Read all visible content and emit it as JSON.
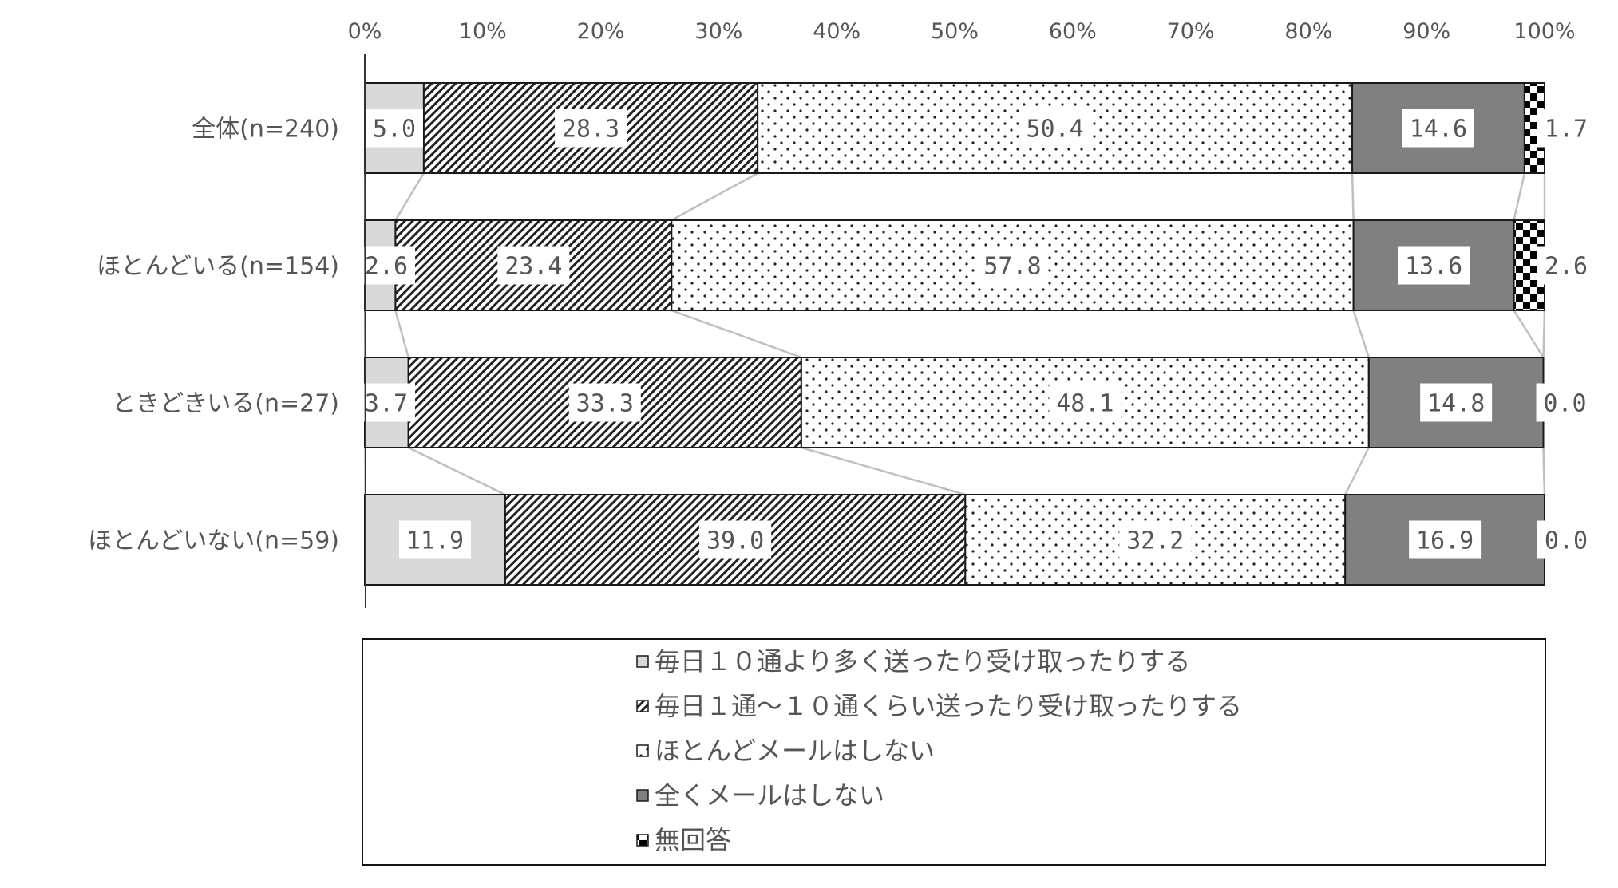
{
  "chart_data": {
    "type": "bar",
    "orientation": "horizontal",
    "stacked": "100%",
    "x_ticks": [
      "0%",
      "10%",
      "20%",
      "30%",
      "40%",
      "50%",
      "60%",
      "70%",
      "80%",
      "90%",
      "100%"
    ],
    "xlim": [
      0,
      100
    ],
    "categories": [
      "全体(n=240)",
      "ほとんどいる(n=154)",
      "ときどきいる(n=27)",
      "ほとんどいない(n=59)"
    ],
    "series": [
      {
        "name": "毎日１０通より多く送ったり受け取ったりする",
        "values": [
          5.0,
          2.6,
          3.7,
          11.9
        ],
        "labels": [
          "5.0",
          "2.6",
          "3.7",
          "11.9"
        ],
        "pattern": "light-gray"
      },
      {
        "name": "毎日１通～１０通くらい送ったり受け取ったりする",
        "values": [
          28.3,
          23.4,
          33.3,
          39.0
        ],
        "labels": [
          "28.3",
          "23.4",
          "33.3",
          "39.0"
        ],
        "pattern": "diagonal-hatch"
      },
      {
        "name": "ほとんどメールはしない",
        "values": [
          50.4,
          57.8,
          48.1,
          32.2
        ],
        "labels": [
          "50.4",
          "57.8",
          "48.1",
          "32.2"
        ],
        "pattern": "dots"
      },
      {
        "name": "全くメールはしない",
        "values": [
          14.6,
          13.6,
          14.8,
          16.9
        ],
        "labels": [
          "14.6",
          "13.6",
          "14.8",
          "16.9"
        ],
        "pattern": "dark-gray"
      },
      {
        "name": "無回答",
        "values": [
          1.7,
          2.6,
          0.0,
          0.0
        ],
        "labels": [
          "1.7",
          "2.6",
          "0.0",
          "0.0"
        ],
        "pattern": "checker"
      }
    ],
    "legend_position": "bottom",
    "series_connector_lines": true,
    "grid": false,
    "colors": {
      "light": "#d9d9d9",
      "dark": "#808080",
      "text": "#555555",
      "connector": "#bfbfbf",
      "edge": "#1a1a1a"
    }
  }
}
